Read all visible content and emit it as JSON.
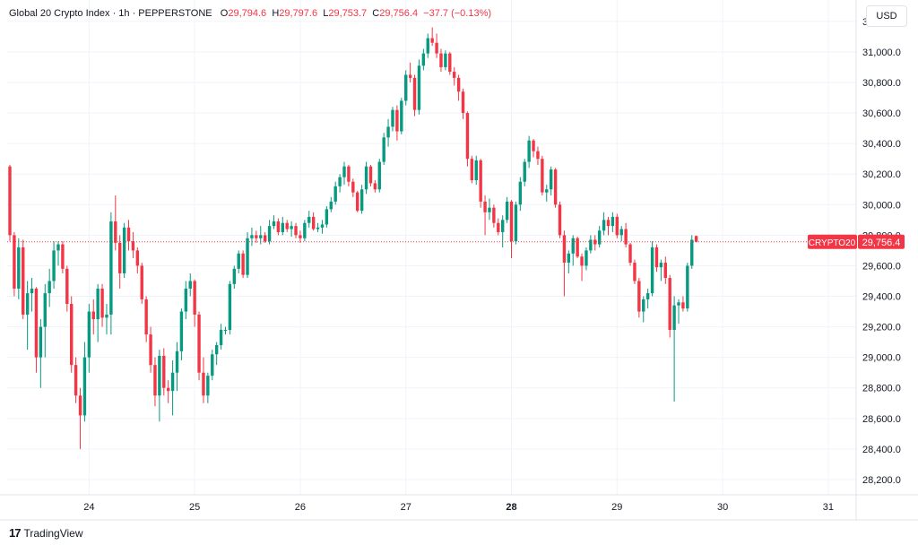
{
  "header": {
    "symbol_title": "Global 20 Crypto Index · 1h · PEPPERSTONE",
    "open_label": "O",
    "open_value": "29,794.6",
    "high_label": "H",
    "high_value": "29,797.6",
    "low_label": "L",
    "low_value": "29,753.7",
    "close_label": "C",
    "close_value": "29,756.4",
    "change_value": "−37.7 (−0.13%)"
  },
  "currency_button": "USD",
  "price_tag": {
    "symbol": "CRYPTO20",
    "value": "29,756.4"
  },
  "branding": {
    "logo_text": "TradingView",
    "logo_icon": "tradingview-logo-icon"
  },
  "colors": {
    "up": "#089981",
    "down": "#f23645",
    "grid": "#f0f3fa",
    "text": "#131722"
  },
  "chart_data": {
    "type": "candlestick",
    "y_ticks": [
      "31,200.0",
      "31,000.0",
      "30,800.0",
      "30,600.0",
      "30,400.0",
      "30,200.0",
      "30,000.0",
      "29,800.0",
      "29,600.0",
      "29,400.0",
      "29,200.0",
      "29,000.0",
      "28,800.0",
      "28,600.0",
      "28,400.0",
      "28,200.0"
    ],
    "ylim": [
      28100,
      31340
    ],
    "x_ticks": [
      {
        "label": "24",
        "bold": false,
        "hour": 18
      },
      {
        "label": "25",
        "bold": false,
        "hour": 42
      },
      {
        "label": "26",
        "bold": false,
        "hour": 66
      },
      {
        "label": "27",
        "bold": false,
        "hour": 90
      },
      {
        "label": "28",
        "bold": true,
        "hour": 114
      },
      {
        "label": "29",
        "bold": false,
        "hour": 138
      },
      {
        "label": "30",
        "bold": false,
        "hour": 162
      },
      {
        "label": "31",
        "bold": false,
        "hour": 186
      }
    ],
    "last_price": 29756.4,
    "candles": [
      [
        30250,
        30260,
        29760,
        29800
      ],
      [
        29800,
        29820,
        29400,
        29450
      ],
      [
        29450,
        29780,
        29380,
        29720
      ],
      [
        29720,
        29770,
        29250,
        29280
      ],
      [
        29280,
        29500,
        29050,
        29420
      ],
      [
        29420,
        29520,
        29300,
        29450
      ],
      [
        29450,
        29460,
        28900,
        29000
      ],
      [
        29000,
        29250,
        28800,
        29200
      ],
      [
        29200,
        29480,
        29000,
        29420
      ],
      [
        29420,
        29580,
        29330,
        29500
      ],
      [
        29500,
        29760,
        29450,
        29700
      ],
      [
        29700,
        29760,
        29600,
        29740
      ],
      [
        29740,
        29760,
        29550,
        29580
      ],
      [
        29580,
        29600,
        29300,
        29350
      ],
      [
        29350,
        29400,
        28900,
        28950
      ],
      [
        28950,
        29000,
        28700,
        28750
      ],
      [
        28750,
        28800,
        28400,
        28620
      ],
      [
        28620,
        29100,
        28580,
        29000
      ],
      [
        29000,
        29350,
        28900,
        29300
      ],
      [
        29300,
        29380,
        29150,
        29250
      ],
      [
        29250,
        29480,
        29100,
        29450
      ],
      [
        29450,
        29480,
        29200,
        29260
      ],
      [
        29260,
        29350,
        29150,
        29280
      ],
      [
        29280,
        29950,
        29150,
        29890
      ],
      [
        29890,
        30060,
        29700,
        29750
      ],
      [
        29750,
        29800,
        29450,
        29550
      ],
      [
        29550,
        29880,
        29520,
        29850
      ],
      [
        29850,
        29900,
        29700,
        29760
      ],
      [
        29760,
        29820,
        29650,
        29700
      ],
      [
        29700,
        29720,
        29550,
        29600
      ],
      [
        29600,
        29620,
        29350,
        29380
      ],
      [
        29380,
        29400,
        29100,
        29150
      ],
      [
        29150,
        29200,
        28900,
        28950
      ],
      [
        28950,
        29000,
        28680,
        28750
      ],
      [
        28750,
        29050,
        28580,
        29010
      ],
      [
        29010,
        29060,
        28750,
        28800
      ],
      [
        28800,
        28850,
        28700,
        28780
      ],
      [
        28780,
        28980,
        28620,
        28900
      ],
      [
        28900,
        29100,
        28780,
        29040
      ],
      [
        29040,
        29320,
        28980,
        29300
      ],
      [
        29300,
        29500,
        29250,
        29450
      ],
      [
        29450,
        29550,
        29400,
        29500
      ],
      [
        29500,
        29510,
        29200,
        29280
      ],
      [
        29280,
        29300,
        28850,
        28900
      ],
      [
        28900,
        29000,
        28700,
        28750
      ],
      [
        28750,
        28900,
        28700,
        28880
      ],
      [
        28880,
        29050,
        28850,
        29020
      ],
      [
        29020,
        29100,
        28950,
        29080
      ],
      [
        29080,
        29220,
        29050,
        29180
      ],
      [
        29180,
        29200,
        29150,
        29180
      ],
      [
        29180,
        29500,
        29150,
        29480
      ],
      [
        29480,
        29600,
        29450,
        29580
      ],
      [
        29580,
        29700,
        29550,
        29680
      ],
      [
        29680,
        29700,
        29520,
        29540
      ],
      [
        29540,
        29820,
        29520,
        29780
      ],
      [
        29780,
        29850,
        29730,
        29800
      ],
      [
        29800,
        29830,
        29750,
        29780
      ],
      [
        29780,
        29860,
        29740,
        29800
      ],
      [
        29800,
        29820,
        29750,
        29760
      ],
      [
        29760,
        29900,
        29740,
        29860
      ],
      [
        29860,
        29930,
        29840,
        29890
      ],
      [
        29890,
        29910,
        29800,
        29820
      ],
      [
        29820,
        29920,
        29800,
        29880
      ],
      [
        29880,
        29900,
        29820,
        29840
      ],
      [
        29840,
        29890,
        29790,
        29860
      ],
      [
        29860,
        29880,
        29780,
        29800
      ],
      [
        29800,
        29830,
        29750,
        29780
      ],
      [
        29780,
        29900,
        29760,
        29880
      ],
      [
        29880,
        29960,
        29850,
        29920
      ],
      [
        29920,
        29950,
        29830,
        29840
      ],
      [
        29840,
        29880,
        29820,
        29850
      ],
      [
        29850,
        29900,
        29810,
        29870
      ],
      [
        29870,
        29990,
        29850,
        29970
      ],
      [
        29970,
        30050,
        29950,
        30020
      ],
      [
        30020,
        30150,
        30000,
        30120
      ],
      [
        30120,
        30200,
        30080,
        30180
      ],
      [
        30180,
        30280,
        30130,
        30250
      ],
      [
        30250,
        30260,
        30120,
        30150
      ],
      [
        30150,
        30170,
        30050,
        30080
      ],
      [
        30080,
        30090,
        29950,
        29960
      ],
      [
        29960,
        30130,
        29940,
        30100
      ],
      [
        30100,
        30280,
        30070,
        30250
      ],
      [
        30250,
        30260,
        30120,
        30140
      ],
      [
        30140,
        30160,
        30080,
        30100
      ],
      [
        30100,
        30300,
        30080,
        30280
      ],
      [
        30280,
        30470,
        30260,
        30440
      ],
      [
        30440,
        30560,
        30380,
        30510
      ],
      [
        30510,
        30640,
        30480,
        30620
      ],
      [
        30620,
        30650,
        30420,
        30480
      ],
      [
        30480,
        30700,
        30460,
        30680
      ],
      [
        30680,
        30880,
        30650,
        30850
      ],
      [
        30850,
        30930,
        30800,
        30830
      ],
      [
        30830,
        30850,
        30580,
        30620
      ],
      [
        30620,
        30950,
        30590,
        30910
      ],
      [
        30910,
        31020,
        30880,
        30990
      ],
      [
        30990,
        31120,
        30960,
        31090
      ],
      [
        31090,
        31160,
        31040,
        31060
      ],
      [
        31060,
        31120,
        30960,
        30990
      ],
      [
        30990,
        31020,
        30870,
        30900
      ],
      [
        30900,
        31010,
        30880,
        30990
      ],
      [
        30990,
        31000,
        30850,
        30870
      ],
      [
        30870,
        30900,
        30780,
        30830
      ],
      [
        30830,
        30850,
        30680,
        30740
      ],
      [
        30740,
        30760,
        30560,
        30600
      ],
      [
        30600,
        30610,
        30250,
        30300
      ],
      [
        30300,
        30320,
        30140,
        30160
      ],
      [
        30160,
        30320,
        30130,
        30290
      ],
      [
        30290,
        30300,
        29980,
        30020
      ],
      [
        30020,
        30060,
        29800,
        29950
      ],
      [
        29950,
        30040,
        29900,
        29980
      ],
      [
        29980,
        30000,
        29850,
        29880
      ],
      [
        29880,
        29910,
        29800,
        29820
      ],
      [
        29820,
        29930,
        29720,
        29900
      ],
      [
        29900,
        30050,
        29880,
        30020
      ],
      [
        30020,
        30030,
        29650,
        29760
      ],
      [
        29760,
        30020,
        29740,
        30000
      ],
      [
        30000,
        30180,
        29960,
        30150
      ],
      [
        30150,
        30300,
        30120,
        30280
      ],
      [
        30280,
        30450,
        30240,
        30420
      ],
      [
        30420,
        30430,
        30310,
        30350
      ],
      [
        30350,
        30380,
        30260,
        30300
      ],
      [
        30300,
        30320,
        30060,
        30080
      ],
      [
        30080,
        30130,
        30020,
        30100
      ],
      [
        30100,
        30250,
        30060,
        30230
      ],
      [
        30230,
        30240,
        29980,
        30000
      ],
      [
        30000,
        30020,
        29780,
        29800
      ],
      [
        29800,
        29830,
        29400,
        29620
      ],
      [
        29620,
        29700,
        29550,
        29680
      ],
      [
        29680,
        29800,
        29600,
        29780
      ],
      [
        29780,
        29790,
        29650,
        29660
      ],
      [
        29660,
        29680,
        29500,
        29600
      ],
      [
        29600,
        29720,
        29570,
        29700
      ],
      [
        29700,
        29800,
        29680,
        29770
      ],
      [
        29770,
        29800,
        29700,
        29740
      ],
      [
        29740,
        29860,
        29720,
        29830
      ],
      [
        29830,
        29950,
        29800,
        29900
      ],
      [
        29900,
        29920,
        29800,
        29860
      ],
      [
        29860,
        29950,
        29820,
        29920
      ],
      [
        29920,
        29940,
        29780,
        29800
      ],
      [
        29800,
        29860,
        29760,
        29840
      ],
      [
        29840,
        29880,
        29720,
        29740
      ],
      [
        29740,
        29750,
        29600,
        29620
      ],
      [
        29620,
        29640,
        29480,
        29500
      ],
      [
        29500,
        29520,
        29260,
        29300
      ],
      [
        29300,
        29400,
        29230,
        29380
      ],
      [
        29380,
        29450,
        29320,
        29420
      ],
      [
        29420,
        29760,
        29400,
        29720
      ],
      [
        29720,
        29740,
        29560,
        29590
      ],
      [
        29590,
        29640,
        29500,
        29620
      ],
      [
        29620,
        29660,
        29480,
        29520
      ],
      [
        29520,
        29540,
        29130,
        29180
      ],
      [
        29180,
        29400,
        28710,
        29340
      ],
      [
        29340,
        29380,
        29220,
        29360
      ],
      [
        29360,
        29400,
        29300,
        29320
      ],
      [
        29320,
        29620,
        29300,
        29600
      ],
      [
        29600,
        29800,
        29580,
        29770
      ],
      [
        29794.6,
        29797.6,
        29753.7,
        29756.4
      ]
    ]
  }
}
